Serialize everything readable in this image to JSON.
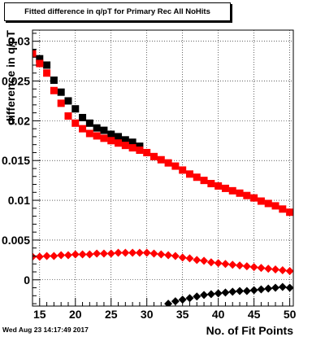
{
  "title": "Fitted difference in q/pT for Primary Rec All NoHits",
  "timestamp": "Wed Aug 23 14:17:49 2017",
  "chart_data": {
    "type": "scatter",
    "xlabel": "No. of Fit Points",
    "ylabel": "difference in q/pT",
    "xlim": [
      14,
      50.5
    ],
    "ylim": [
      -0.0033,
      0.0314
    ],
    "x_ticks": [
      15,
      20,
      25,
      30,
      35,
      40,
      45,
      50
    ],
    "y_ticks": [
      0,
      0.005,
      0.01,
      0.015,
      0.02,
      0.025,
      0.03
    ],
    "y_tick_labels": [
      "0",
      "0.005",
      "0.01",
      "0.015",
      "0.02",
      "0.025",
      "0.03"
    ],
    "grid": true,
    "series": [
      {
        "color": "#000000",
        "marker": "square",
        "x": [
          14,
          15,
          16,
          17,
          18,
          19,
          20,
          21,
          22,
          23,
          24,
          25,
          26,
          27,
          28,
          29
        ],
        "y": [
          0.0285,
          0.0278,
          0.027,
          0.0251,
          0.0236,
          0.0225,
          0.0215,
          0.0204,
          0.0197,
          0.0191,
          0.0188,
          0.0183,
          0.018,
          0.0176,
          0.0173,
          0.0168
        ]
      },
      {
        "color": "#ff0000",
        "marker": "square",
        "x": [
          14,
          15,
          16,
          17,
          18,
          19,
          20,
          21,
          22,
          23,
          24,
          25,
          26,
          27,
          28,
          29,
          30,
          31,
          32,
          33,
          34,
          35,
          36,
          37,
          38,
          39,
          40,
          41,
          42,
          43,
          44,
          45,
          46,
          47,
          48,
          49,
          50
        ],
        "y": [
          0.0284,
          0.0272,
          0.026,
          0.0238,
          0.0222,
          0.0206,
          0.0197,
          0.019,
          0.0184,
          0.0181,
          0.0178,
          0.0175,
          0.0172,
          0.0169,
          0.0166,
          0.0163,
          0.016,
          0.0155,
          0.0151,
          0.0147,
          0.0143,
          0.0138,
          0.0133,
          0.0129,
          0.0125,
          0.0121,
          0.0118,
          0.0115,
          0.0112,
          0.0109,
          0.0106,
          0.0103,
          0.0099,
          0.0096,
          0.0093,
          0.0089,
          0.0085
        ]
      },
      {
        "color": "#ff0000",
        "marker": "diamond",
        "x": [
          14,
          15,
          16,
          17,
          18,
          19,
          20,
          21,
          22,
          23,
          24,
          25,
          26,
          27,
          28,
          29,
          30,
          31,
          32,
          33,
          34,
          35,
          36,
          37,
          38,
          39,
          40,
          41,
          42,
          43,
          44,
          45,
          46,
          47,
          48,
          49,
          50
        ],
        "y": [
          0.0029,
          0.0029,
          0.003,
          0.003,
          0.0031,
          0.0031,
          0.0032,
          0.0032,
          0.0032,
          0.0033,
          0.0033,
          0.0033,
          0.0034,
          0.0034,
          0.0034,
          0.0034,
          0.0034,
          0.0033,
          0.0032,
          0.0031,
          0.003,
          0.0028,
          0.0027,
          0.0025,
          0.0024,
          0.0022,
          0.0021,
          0.002,
          0.0019,
          0.0018,
          0.0017,
          0.0016,
          0.0015,
          0.0014,
          0.0013,
          0.0012,
          0.0011
        ]
      },
      {
        "color": "#000000",
        "marker": "diamond",
        "x": [
          33,
          34,
          35,
          36,
          37,
          38,
          39,
          40,
          41,
          42,
          43,
          44,
          45,
          46,
          47,
          48,
          49,
          50
        ],
        "y": [
          -0.003,
          -0.0027,
          -0.0025,
          -0.0023,
          -0.0021,
          -0.0019,
          -0.0018,
          -0.0017,
          -0.0016,
          -0.0015,
          -0.0014,
          -0.0014,
          -0.0013,
          -0.0012,
          -0.0011,
          -0.001,
          -0.0009,
          -0.001
        ]
      }
    ]
  }
}
